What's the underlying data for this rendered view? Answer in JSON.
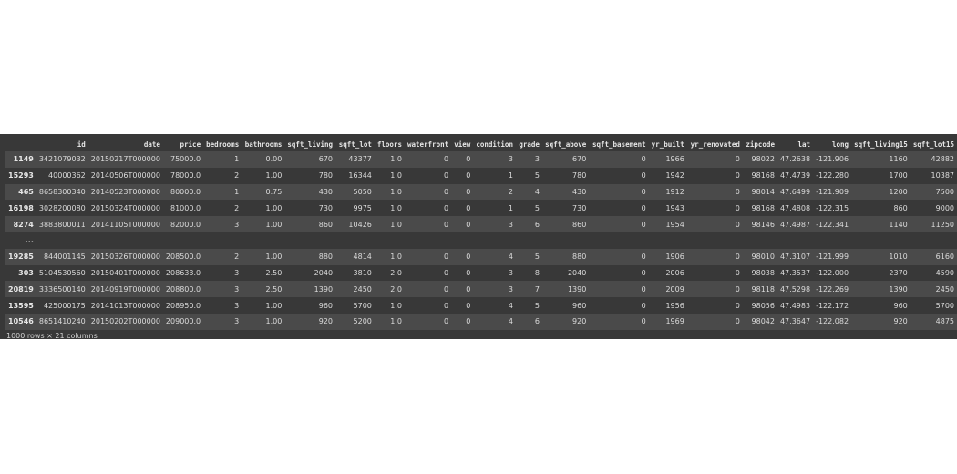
{
  "dataframe": {
    "columns": [
      "id",
      "date",
      "price",
      "bedrooms",
      "bathrooms",
      "sqft_living",
      "sqft_lot",
      "floors",
      "waterfront",
      "view",
      "condition",
      "grade",
      "sqft_above",
      "sqft_basement",
      "yr_built",
      "yr_renovated",
      "zipcode",
      "lat",
      "long",
      "sqft_living15",
      "sqft_lot15"
    ],
    "rows": [
      {
        "index": "1149",
        "cells": [
          "3421079032",
          "20150217T000000",
          "75000.0",
          "1",
          "0.00",
          "670",
          "43377",
          "1.0",
          "0",
          "0",
          "3",
          "3",
          "670",
          "0",
          "1966",
          "0",
          "98022",
          "47.2638",
          "-121.906",
          "1160",
          "42882"
        ]
      },
      {
        "index": "15293",
        "cells": [
          "40000362",
          "20140506T000000",
          "78000.0",
          "2",
          "1.00",
          "780",
          "16344",
          "1.0",
          "0",
          "0",
          "1",
          "5",
          "780",
          "0",
          "1942",
          "0",
          "98168",
          "47.4739",
          "-122.280",
          "1700",
          "10387"
        ]
      },
      {
        "index": "465",
        "cells": [
          "8658300340",
          "20140523T000000",
          "80000.0",
          "1",
          "0.75",
          "430",
          "5050",
          "1.0",
          "0",
          "0",
          "2",
          "4",
          "430",
          "0",
          "1912",
          "0",
          "98014",
          "47.6499",
          "-121.909",
          "1200",
          "7500"
        ]
      },
      {
        "index": "16198",
        "cells": [
          "3028200080",
          "20150324T000000",
          "81000.0",
          "2",
          "1.00",
          "730",
          "9975",
          "1.0",
          "0",
          "0",
          "1",
          "5",
          "730",
          "0",
          "1943",
          "0",
          "98168",
          "47.4808",
          "-122.315",
          "860",
          "9000"
        ]
      },
      {
        "index": "8274",
        "cells": [
          "3883800011",
          "20141105T000000",
          "82000.0",
          "3",
          "1.00",
          "860",
          "10426",
          "1.0",
          "0",
          "0",
          "3",
          "6",
          "860",
          "0",
          "1954",
          "0",
          "98146",
          "47.4987",
          "-122.341",
          "1140",
          "11250"
        ]
      },
      {
        "index": "...",
        "cells": [
          "...",
          "...",
          "...",
          "...",
          "...",
          "...",
          "...",
          "...",
          "...",
          "...",
          "...",
          "...",
          "...",
          "...",
          "...",
          "...",
          "...",
          "...",
          "...",
          "...",
          "..."
        ]
      },
      {
        "index": "19285",
        "cells": [
          "844001145",
          "20150326T000000",
          "208500.0",
          "2",
          "1.00",
          "880",
          "4814",
          "1.0",
          "0",
          "0",
          "4",
          "5",
          "880",
          "0",
          "1906",
          "0",
          "98010",
          "47.3107",
          "-121.999",
          "1010",
          "6160"
        ]
      },
      {
        "index": "303",
        "cells": [
          "5104530560",
          "20150401T000000",
          "208633.0",
          "3",
          "2.50",
          "2040",
          "3810",
          "2.0",
          "0",
          "0",
          "3",
          "8",
          "2040",
          "0",
          "2006",
          "0",
          "98038",
          "47.3537",
          "-122.000",
          "2370",
          "4590"
        ]
      },
      {
        "index": "20819",
        "cells": [
          "3336500140",
          "20140919T000000",
          "208800.0",
          "3",
          "2.50",
          "1390",
          "2450",
          "2.0",
          "0",
          "0",
          "3",
          "7",
          "1390",
          "0",
          "2009",
          "0",
          "98118",
          "47.5298",
          "-122.269",
          "1390",
          "2450"
        ]
      },
      {
        "index": "13595",
        "cells": [
          "425000175",
          "20141013T000000",
          "208950.0",
          "3",
          "1.00",
          "960",
          "5700",
          "1.0",
          "0",
          "0",
          "4",
          "5",
          "960",
          "0",
          "1956",
          "0",
          "98056",
          "47.4983",
          "-122.172",
          "960",
          "5700"
        ]
      },
      {
        "index": "10546",
        "cells": [
          "8651410240",
          "20150202T000000",
          "209000.0",
          "3",
          "1.00",
          "920",
          "5200",
          "1.0",
          "0",
          "0",
          "4",
          "6",
          "920",
          "0",
          "1969",
          "0",
          "98042",
          "47.3647",
          "-122.082",
          "920",
          "4875"
        ]
      }
    ],
    "caption": "1000 rows × 21 columns"
  },
  "colors": {
    "panel_bg": "#383838",
    "stripe_bg": "#4a4a4a",
    "text": "#dadada"
  }
}
